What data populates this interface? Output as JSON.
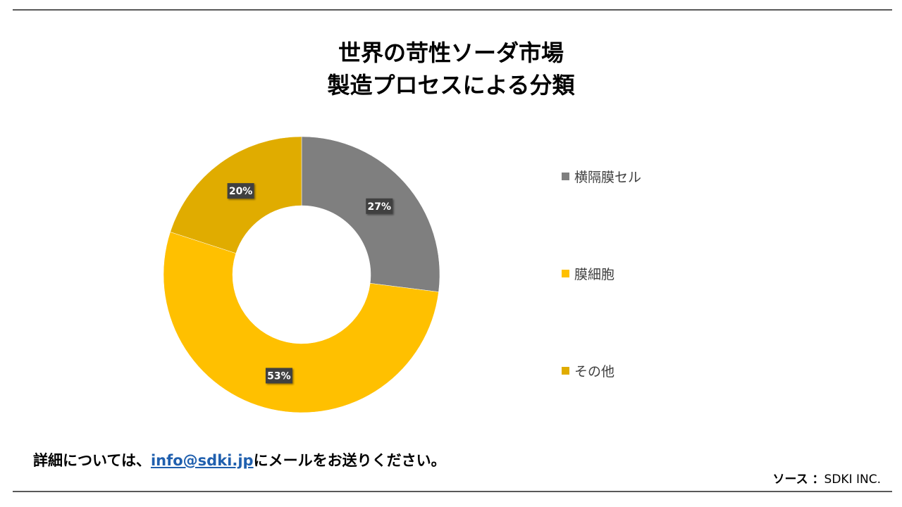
{
  "title": {
    "line1": "世界の苛性ソーダ市場",
    "line2": "製造プロセスによる分類"
  },
  "chart_data": {
    "type": "pie",
    "donut": true,
    "categories": [
      "横隔膜セル",
      "膜細胞",
      "その他"
    ],
    "values": [
      27,
      53,
      20
    ],
    "labels": [
      "27%",
      "53%",
      "20%"
    ],
    "colors": [
      "#7f7f7f",
      "#ffc000",
      "#e0ac00"
    ],
    "legend_position": "right"
  },
  "footer": {
    "prefix": "詳細については、",
    "email": "info@sdki.jp",
    "suffix": "にメールをお送りください。"
  },
  "source": {
    "label": "ソース ：",
    "value": "SDKI INC."
  }
}
